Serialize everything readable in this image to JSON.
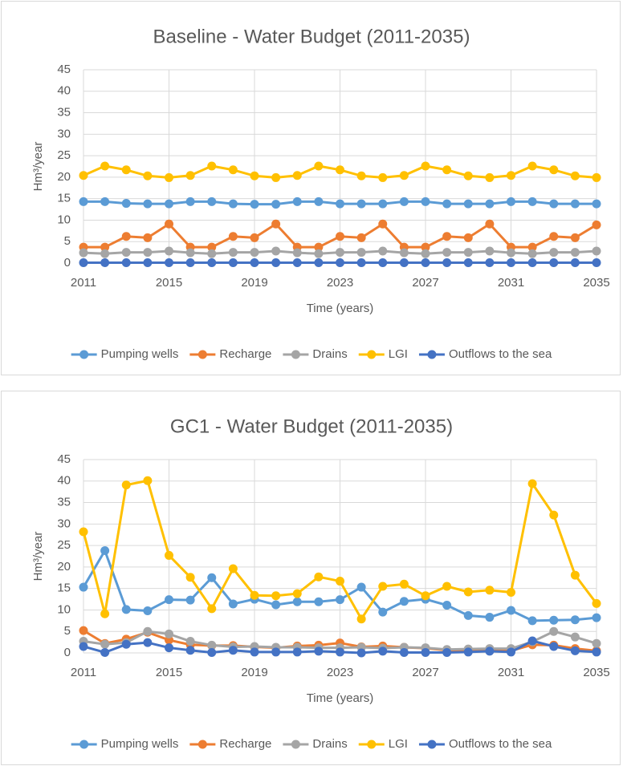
{
  "chart_data": [
    {
      "type": "line",
      "title": "Baseline - Water Budget (2011-2035)",
      "x_label": "Time (years)",
      "y_label": "Hm³/year",
      "x": [
        2011,
        2012,
        2013,
        2014,
        2015,
        2016,
        2017,
        2018,
        2019,
        2020,
        2021,
        2022,
        2023,
        2024,
        2025,
        2026,
        2027,
        2028,
        2029,
        2030,
        2031,
        2032,
        2033,
        2034,
        2035
      ],
      "xlim": [
        2011,
        2035
      ],
      "xticks": [
        2011,
        2015,
        2019,
        2023,
        2027,
        2031,
        2035
      ],
      "ylim": [
        0,
        45
      ],
      "yticks": [
        0,
        5,
        10,
        15,
        20,
        25,
        30,
        35,
        40,
        45
      ],
      "grid": true,
      "legend": "bottom",
      "series": [
        {
          "name": "Pumping wells",
          "color": "#5b9bd5",
          "values": [
            14.3,
            14.3,
            13.9,
            13.8,
            13.8,
            14.3,
            14.3,
            13.8,
            13.7,
            13.7,
            14.3,
            14.3,
            13.8,
            13.8,
            13.8,
            14.3,
            14.3,
            13.8,
            13.8,
            13.8,
            14.3,
            14.3,
            13.8,
            13.8,
            13.8
          ]
        },
        {
          "name": "Recharge",
          "color": "#ed7d31",
          "values": [
            3.7,
            3.7,
            6.2,
            5.9,
            9.1,
            3.7,
            3.7,
            6.2,
            5.9,
            9.1,
            3.7,
            3.7,
            6.2,
            5.9,
            9.1,
            3.7,
            3.7,
            6.2,
            5.9,
            9.1,
            3.7,
            3.7,
            6.2,
            5.9,
            8.9
          ]
        },
        {
          "name": "Drains",
          "color": "#a5a5a5",
          "values": [
            2.4,
            2.2,
            2.5,
            2.5,
            2.8,
            2.4,
            2.2,
            2.5,
            2.5,
            2.8,
            2.4,
            2.2,
            2.5,
            2.5,
            2.8,
            2.4,
            2.2,
            2.5,
            2.5,
            2.8,
            2.4,
            2.2,
            2.5,
            2.5,
            2.8
          ]
        },
        {
          "name": "LGI",
          "color": "#ffc000",
          "values": [
            20.4,
            22.6,
            21.7,
            20.3,
            19.9,
            20.4,
            22.6,
            21.7,
            20.3,
            19.9,
            20.4,
            22.6,
            21.7,
            20.3,
            19.9,
            20.4,
            22.6,
            21.7,
            20.3,
            19.9,
            20.4,
            22.6,
            21.7,
            20.3,
            19.9
          ]
        },
        {
          "name": "Outflows to the sea",
          "color": "#4472c4",
          "values": [
            0.1,
            0.1,
            0.1,
            0.1,
            0.1,
            0.1,
            0.1,
            0.1,
            0.1,
            0.1,
            0.1,
            0.1,
            0.1,
            0.1,
            0.1,
            0.1,
            0.1,
            0.1,
            0.1,
            0.1,
            0.1,
            0.1,
            0.1,
            0.1,
            0.1
          ]
        }
      ]
    },
    {
      "type": "line",
      "title": "GC1 - Water Budget (2011-2035)",
      "x_label": "Time (years)",
      "y_label": "Hm³/year",
      "x": [
        2011,
        2012,
        2013,
        2014,
        2015,
        2016,
        2017,
        2018,
        2019,
        2020,
        2021,
        2022,
        2023,
        2024,
        2025,
        2026,
        2027,
        2028,
        2029,
        2030,
        2031,
        2032,
        2033,
        2034,
        2035
      ],
      "xlim": [
        2011,
        2035
      ],
      "xticks": [
        2011,
        2015,
        2019,
        2023,
        2027,
        2031,
        2035
      ],
      "ylim": [
        0,
        45
      ],
      "yticks": [
        0,
        5,
        10,
        15,
        20,
        25,
        30,
        35,
        40,
        45
      ],
      "grid": true,
      "legend": "bottom",
      "series": [
        {
          "name": "Pumping wells",
          "color": "#5b9bd5",
          "values": [
            15.3,
            23.8,
            10.1,
            9.8,
            12.4,
            12.3,
            17.5,
            11.4,
            12.5,
            11.2,
            11.9,
            11.9,
            12.4,
            15.3,
            9.5,
            12.0,
            12.5,
            11.1,
            8.7,
            8.3,
            9.9,
            7.5,
            7.6,
            7.7,
            8.2
          ]
        },
        {
          "name": "Recharge",
          "color": "#ed7d31",
          "values": [
            5.2,
            2.2,
            3.2,
            4.8,
            3.0,
            1.9,
            1.7,
            1.7,
            1.4,
            1.2,
            1.6,
            1.8,
            2.3,
            1.4,
            1.6,
            1.3,
            1.1,
            0.6,
            0.5,
            0.6,
            0.5,
            1.9,
            1.8,
            1.0,
            0.5
          ]
        },
        {
          "name": "Drains",
          "color": "#a5a5a5",
          "values": [
            2.7,
            2.0,
            2.4,
            5.0,
            4.4,
            2.7,
            1.8,
            1.4,
            1.5,
            1.3,
            1.3,
            1.2,
            1.2,
            1.3,
            1.1,
            1.3,
            1.2,
            0.8,
            0.9,
            1.0,
            1.0,
            2.6,
            5.0,
            3.7,
            2.2
          ]
        },
        {
          "name": "LGI",
          "color": "#ffc000",
          "values": [
            28.2,
            9.1,
            39.1,
            40.1,
            22.7,
            17.6,
            10.3,
            19.6,
            13.4,
            13.3,
            13.8,
            17.7,
            16.7,
            7.9,
            15.5,
            16.0,
            13.3,
            15.5,
            14.2,
            14.6,
            14.1,
            39.4,
            32.1,
            18.1,
            11.5
          ]
        },
        {
          "name": "Outflows to the sea",
          "color": "#4472c4",
          "values": [
            1.5,
            0.1,
            2.0,
            2.4,
            1.2,
            0.6,
            0.1,
            0.6,
            0.2,
            0.2,
            0.2,
            0.4,
            0.2,
            0.0,
            0.4,
            0.1,
            0.1,
            0.1,
            0.2,
            0.4,
            0.2,
            2.8,
            1.5,
            0.5,
            0.2
          ]
        }
      ]
    }
  ]
}
